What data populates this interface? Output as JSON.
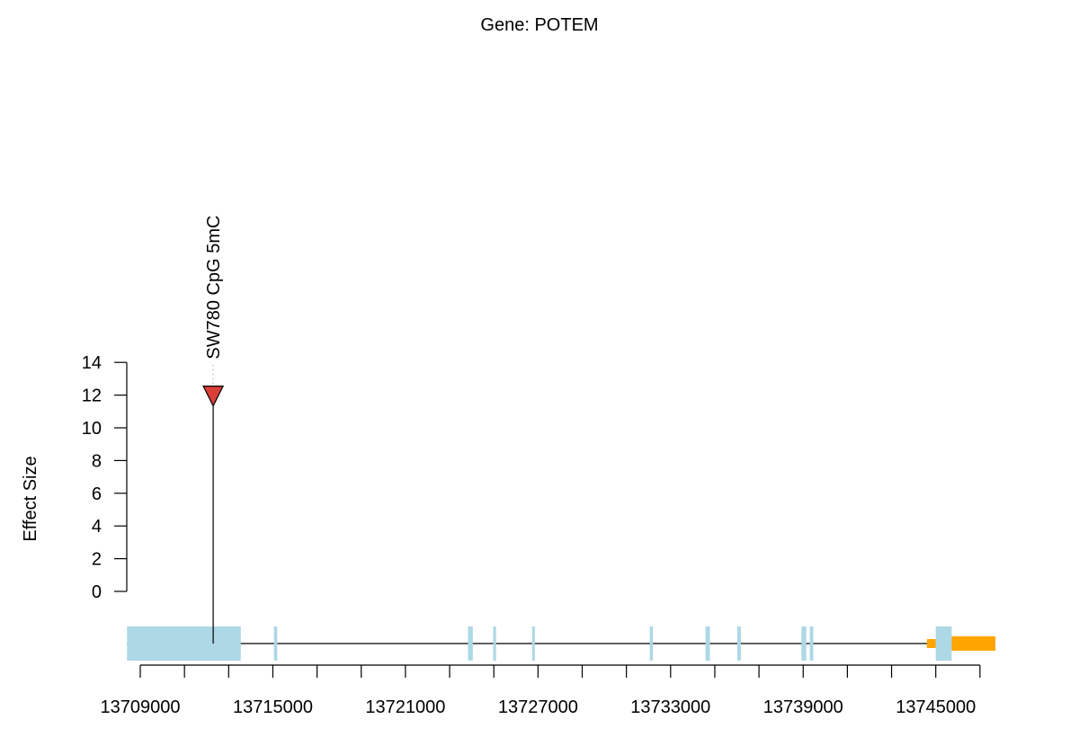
{
  "title": "Gene: POTEM",
  "ylabel": "Effect Size",
  "colors": {
    "exon": "#add8e6",
    "orange_feature": "#ffa500",
    "marker_fill": "#d9403a",
    "axis": "#000000"
  },
  "chart_data": {
    "type": "lollipop",
    "title": "Gene: POTEM",
    "ylabel": "Effect Size",
    "xlabel": "",
    "ylim": [
      0,
      14
    ],
    "y_ticks": [
      0,
      2,
      4,
      6,
      8,
      10,
      12,
      14
    ],
    "xlim": [
      13708000,
      13747000
    ],
    "x_ticks": [
      13709000,
      13711000,
      13713000,
      13715000,
      13717000,
      13719000,
      13721000,
      13723000,
      13725000,
      13727000,
      13729000,
      13731000,
      13733000,
      13735000,
      13737000,
      13739000,
      13741000,
      13743000,
      13745000,
      13747000
    ],
    "x_tick_labels": [
      {
        "value": 13709000,
        "label": "13709000"
      },
      {
        "value": 13715000,
        "label": "13715000"
      },
      {
        "value": 13721000,
        "label": "13721000"
      },
      {
        "value": 13727000,
        "label": "13727000"
      },
      {
        "value": 13733000,
        "label": "13733000"
      },
      {
        "value": 13739000,
        "label": "13739000"
      },
      {
        "value": 13745000,
        "label": "13745000"
      }
    ],
    "gene_line": [
      13708400,
      13746200
    ],
    "exons": [
      {
        "start": 13708400,
        "end": 13713550
      },
      {
        "start": 13715050,
        "end": 13715200
      },
      {
        "start": 13723830,
        "end": 13724050
      },
      {
        "start": 13724970,
        "end": 13725100
      },
      {
        "start": 13726730,
        "end": 13726860
      },
      {
        "start": 13732060,
        "end": 13732200
      },
      {
        "start": 13734580,
        "end": 13734780
      },
      {
        "start": 13736020,
        "end": 13736180
      },
      {
        "start": 13738920,
        "end": 13739140
      },
      {
        "start": 13739300,
        "end": 13739460
      },
      {
        "start": 13745000,
        "end": 13745720
      }
    ],
    "orange_features": [
      {
        "start": 13744600,
        "end": 13745000,
        "size": "thin"
      },
      {
        "start": 13745720,
        "end": 13747700,
        "size": "thick"
      }
    ],
    "points": [
      {
        "x": 13712300,
        "y": 12.0,
        "label": "SW780 CpG 5mC"
      }
    ]
  }
}
